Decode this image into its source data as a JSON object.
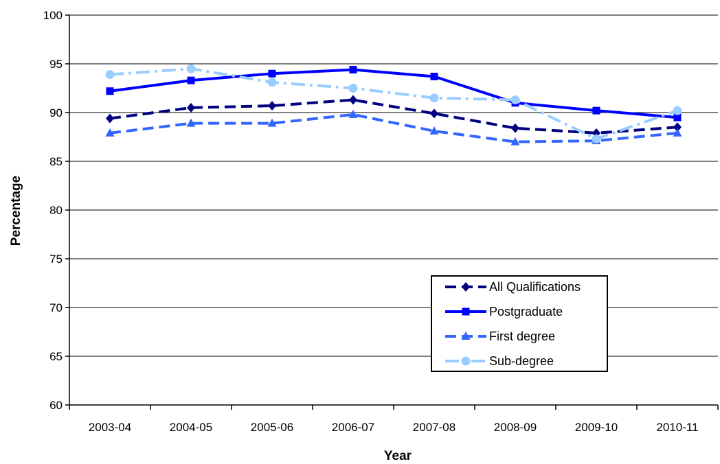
{
  "chart_data": {
    "type": "line",
    "title": "",
    "xlabel": "Year",
    "ylabel": "Percentage",
    "ylim": [
      60,
      100
    ],
    "yticks": [
      60,
      65,
      70,
      75,
      80,
      85,
      90,
      95,
      100
    ],
    "grid": "horizontal",
    "legend_position": "bottom-right",
    "categories": [
      "2003-04",
      "2004-05",
      "2005-06",
      "2006-07",
      "2007-08",
      "2008-09",
      "2009-10",
      "2010-11"
    ],
    "series": [
      {
        "name": "All Qualifications",
        "values": [
          89.4,
          90.5,
          90.7,
          91.3,
          89.9,
          88.4,
          87.9,
          88.5
        ],
        "color": "#000080",
        "marker": "diamond",
        "dash": "dashed"
      },
      {
        "name": "Postgraduate",
        "values": [
          92.2,
          93.3,
          94.0,
          94.4,
          93.7,
          91.0,
          90.2,
          89.5
        ],
        "color": "#0000ff",
        "marker": "square",
        "dash": "solid"
      },
      {
        "name": "First degree",
        "values": [
          87.9,
          88.9,
          88.9,
          89.8,
          88.1,
          87.0,
          87.1,
          87.9
        ],
        "color": "#3366ff",
        "marker": "triangle",
        "dash": "dashed"
      },
      {
        "name": "Sub-degree",
        "values": [
          93.9,
          94.5,
          93.1,
          92.5,
          91.5,
          91.3,
          87.3,
          90.2
        ],
        "color": "#99ccff",
        "marker": "circle",
        "dash": "dashdot"
      }
    ]
  }
}
